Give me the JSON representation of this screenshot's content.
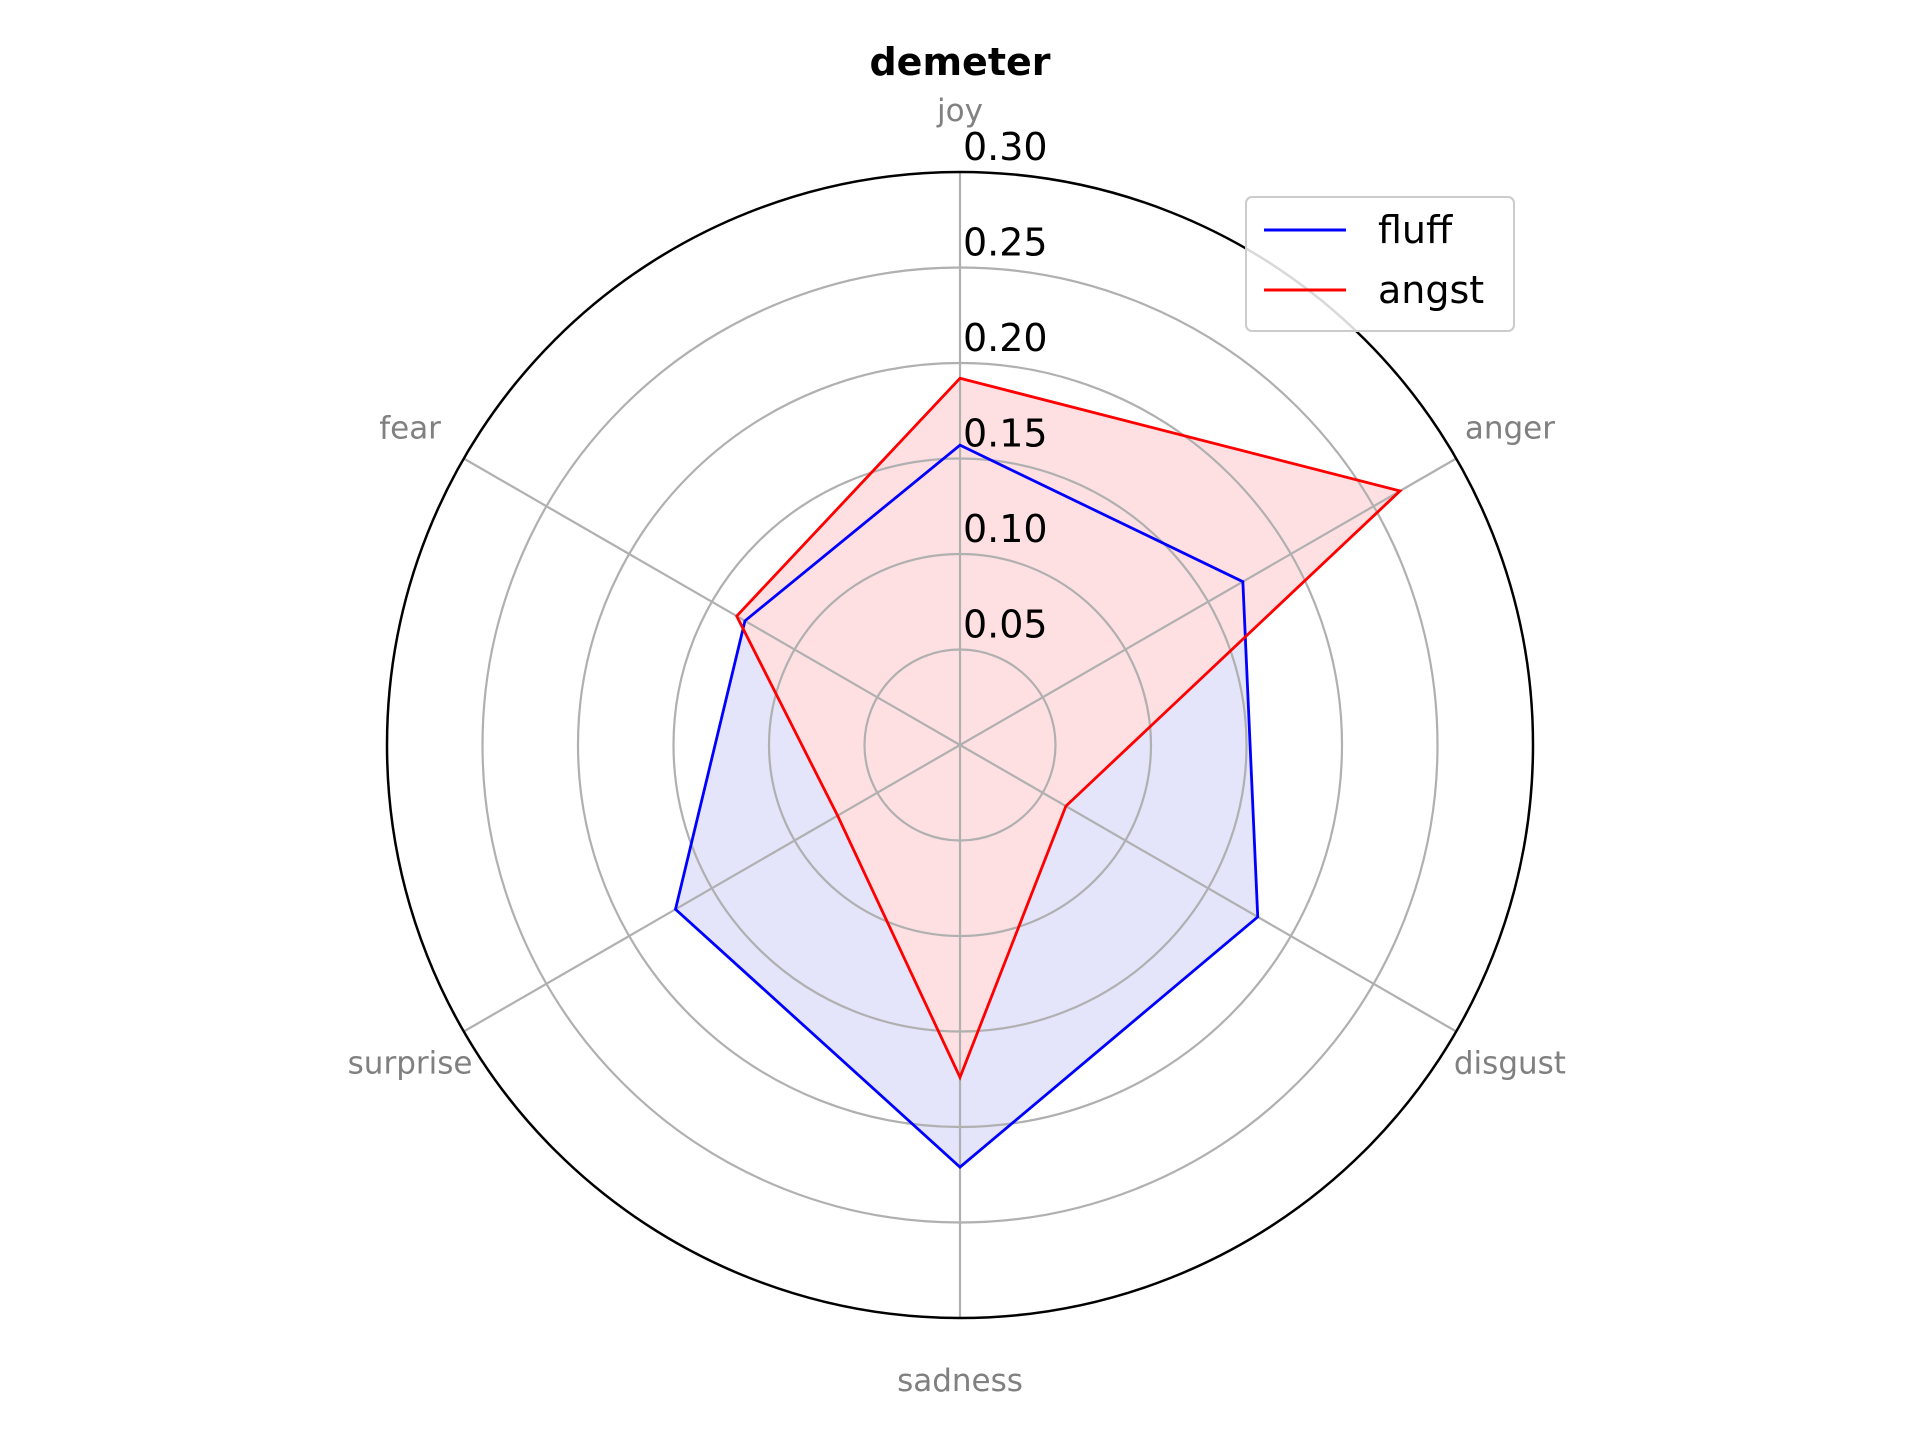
{
  "chart_data": {
    "type": "radar",
    "title": "demeter",
    "axes": [
      "joy",
      "anger",
      "disgust",
      "sadness",
      "surprise",
      "fear"
    ],
    "rlim": [
      0,
      0.3
    ],
    "rticks": [
      "0.05",
      "0.10",
      "0.15",
      "0.20",
      "0.25",
      "0.30"
    ],
    "rtick_values": [
      0.05,
      0.1,
      0.15,
      0.2,
      0.25,
      0.3
    ],
    "grid": true,
    "legend_position": "top-right",
    "series": [
      {
        "name": "fluff",
        "color": "#0000ff",
        "fill": "#e4e4fb",
        "values": [
          0.157,
          0.171,
          0.18,
          0.221,
          0.172,
          0.13
        ]
      },
      {
        "name": "angst",
        "color": "#ff0000",
        "fill": "#ffe0e2",
        "values": [
          0.192,
          0.266,
          0.064,
          0.174,
          0.074,
          0.135
        ]
      }
    ]
  }
}
